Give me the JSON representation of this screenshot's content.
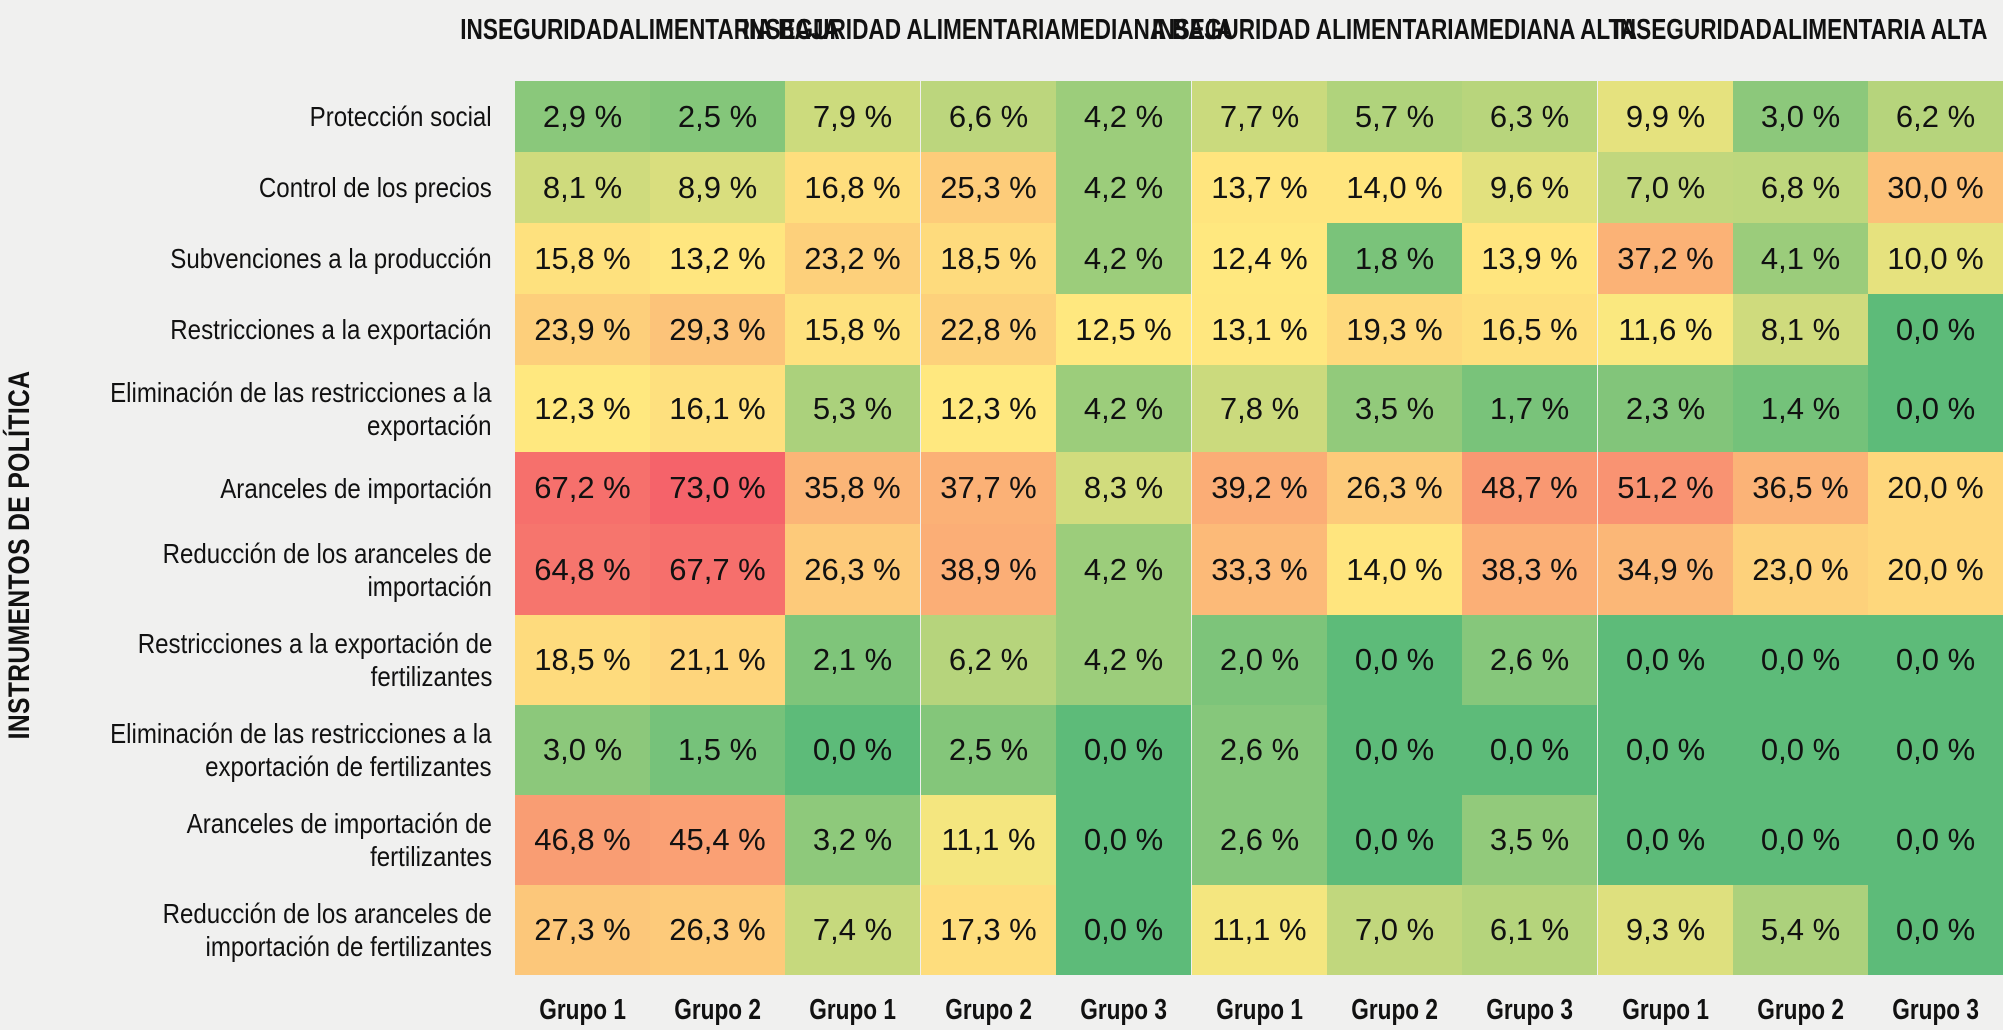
{
  "chart_data": {
    "type": "heatmap",
    "y_axis_title": "INSTRUMENTOS DE POLÍTICA",
    "groups": [
      {
        "title": [
          "INSEGURIDAD",
          "ALIMENTARIA BAJA"
        ],
        "columns": [
          "Grupo 1",
          "Grupo 2"
        ]
      },
      {
        "title": [
          "INSEGURIDAD ALIMENTARIA",
          "MEDIANA BAJA"
        ],
        "columns": [
          "Grupo 1",
          "Grupo 2",
          "Grupo 3"
        ]
      },
      {
        "title": [
          "INSEGURIDAD ALIMENTARIA",
          "MEDIANA ALTA"
        ],
        "columns": [
          "Grupo 1",
          "Grupo 2",
          "Grupo 3"
        ]
      },
      {
        "title": [
          "INSEGURIDAD",
          "ALIMENTARIA ALTA"
        ],
        "columns": [
          "Grupo 1",
          "Grupo 2",
          "Grupo 3"
        ]
      }
    ],
    "rows": [
      {
        "label": [
          "Protección social"
        ],
        "values": [
          2.9,
          2.5,
          7.9,
          6.6,
          4.2,
          7.7,
          5.7,
          6.3,
          9.9,
          3.0,
          6.2
        ]
      },
      {
        "label": [
          "Control de los precios"
        ],
        "values": [
          8.1,
          8.9,
          16.8,
          25.3,
          4.2,
          13.7,
          14.0,
          9.6,
          7.0,
          6.8,
          30.0
        ]
      },
      {
        "label": [
          "Subvenciones a la producción"
        ],
        "values": [
          15.8,
          13.2,
          23.2,
          18.5,
          4.2,
          12.4,
          1.8,
          13.9,
          37.2,
          4.1,
          10.0
        ]
      },
      {
        "label": [
          "Restricciones a la exportación"
        ],
        "values": [
          23.9,
          29.3,
          15.8,
          22.8,
          12.5,
          13.1,
          19.3,
          16.5,
          11.6,
          8.1,
          0.0
        ]
      },
      {
        "label": [
          "Eliminación de las restricciones a la",
          "exportación"
        ],
        "values": [
          12.3,
          16.1,
          5.3,
          12.3,
          4.2,
          7.8,
          3.5,
          1.7,
          2.3,
          1.4,
          0.0
        ]
      },
      {
        "label": [
          "Aranceles de importación"
        ],
        "values": [
          67.2,
          73.0,
          35.8,
          37.7,
          8.3,
          39.2,
          26.3,
          48.7,
          51.2,
          36.5,
          20.0
        ]
      },
      {
        "label": [
          "Reducción de los aranceles de",
          "importación"
        ],
        "values": [
          64.8,
          67.7,
          26.3,
          38.9,
          4.2,
          33.3,
          14.0,
          38.3,
          34.9,
          23.0,
          20.0
        ]
      },
      {
        "label": [
          "Restricciones a la exportación de",
          "fertilizantes"
        ],
        "values": [
          18.5,
          21.1,
          2.1,
          6.2,
          4.2,
          2.0,
          0.0,
          2.6,
          0.0,
          0.0,
          0.0
        ]
      },
      {
        "label": [
          "Eliminación de las restricciones a la",
          "exportación de fertilizantes"
        ],
        "values": [
          3.0,
          1.5,
          0.0,
          2.5,
          0.0,
          2.6,
          0.0,
          0.0,
          0.0,
          0.0,
          0.0
        ]
      },
      {
        "label": [
          "Aranceles de importación de",
          "fertilizantes"
        ],
        "values": [
          46.8,
          45.4,
          3.2,
          11.1,
          0.0,
          2.6,
          0.0,
          3.5,
          0.0,
          0.0,
          0.0
        ]
      },
      {
        "label": [
          "Reducción de los aranceles de",
          "importación de fertilizantes"
        ],
        "values": [
          27.3,
          26.3,
          7.4,
          17.3,
          0.0,
          11.1,
          7.0,
          6.1,
          9.3,
          5.4,
          0.0
        ]
      }
    ],
    "value_format": "percent_comma",
    "color_scale": [
      "#5dbb79",
      "#ffe97f",
      "#f5636a"
    ]
  }
}
